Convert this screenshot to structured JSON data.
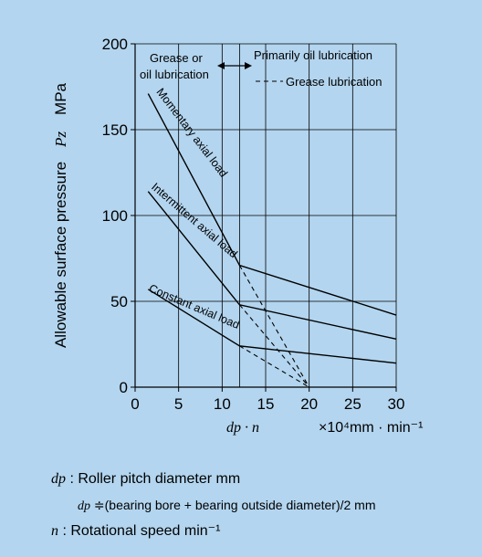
{
  "chart_data": {
    "type": "line",
    "xlabel_symbol": "dp · n",
    "xlabel_unit": "×10⁴mm · min⁻¹",
    "ylabel": "Allowable surface pressure",
    "ylabel_symbol": "Pz",
    "ylabel_unit": "MPa",
    "xlim": [
      0,
      30
    ],
    "ylim": [
      0,
      200
    ],
    "x_ticks": [
      0,
      5,
      10,
      15,
      20,
      25,
      30
    ],
    "y_ticks": [
      0,
      50,
      100,
      150,
      200
    ],
    "grid": true,
    "series": [
      {
        "name": "Momentary axial load",
        "style": "solid",
        "x": [
          1.5,
          12,
          30
        ],
        "y": [
          171,
          71,
          42
        ]
      },
      {
        "name": "Intermittent axial load",
        "style": "solid",
        "x": [
          1.5,
          12,
          30
        ],
        "y": [
          114,
          48,
          28
        ]
      },
      {
        "name": "Constant axial load",
        "style": "solid",
        "x": [
          1.5,
          12,
          30
        ],
        "y": [
          57,
          24,
          14
        ]
      },
      {
        "name": "Grease lubrication",
        "style": "dashed",
        "x": [
          12,
          20
        ],
        "y": [
          71,
          0
        ]
      },
      {
        "name": "Grease lubrication",
        "style": "dashed",
        "x": [
          12,
          20
        ],
        "y": [
          48,
          0
        ]
      },
      {
        "name": "Grease lubrication",
        "style": "dashed",
        "x": [
          12,
          20
        ],
        "y": [
          24,
          0
        ]
      }
    ],
    "region_divider_x": 12,
    "annotations": {
      "left_region_line1": "Grease or",
      "left_region_line2": "oil lubrication",
      "right_region": "Primarily oil lubrication",
      "dashed_legend": "Grease lubrication",
      "curve_momentary": "Momentary axial load",
      "curve_intermittent": "Intermittent axial load",
      "curve_constant": "Constant axial load"
    }
  },
  "notes": {
    "dp_symbol": "dp",
    "dp_text": ": Roller pitch diameter mm",
    "dp_formula_symbol": "dp",
    "dp_formula": "≑(bearing bore + bearing outside diameter)/2 mm",
    "n_symbol": "n",
    "n_text": ": Rotational speed   min⁻¹"
  },
  "colors": {
    "background": "#b3d5ef",
    "line": "#000000"
  }
}
